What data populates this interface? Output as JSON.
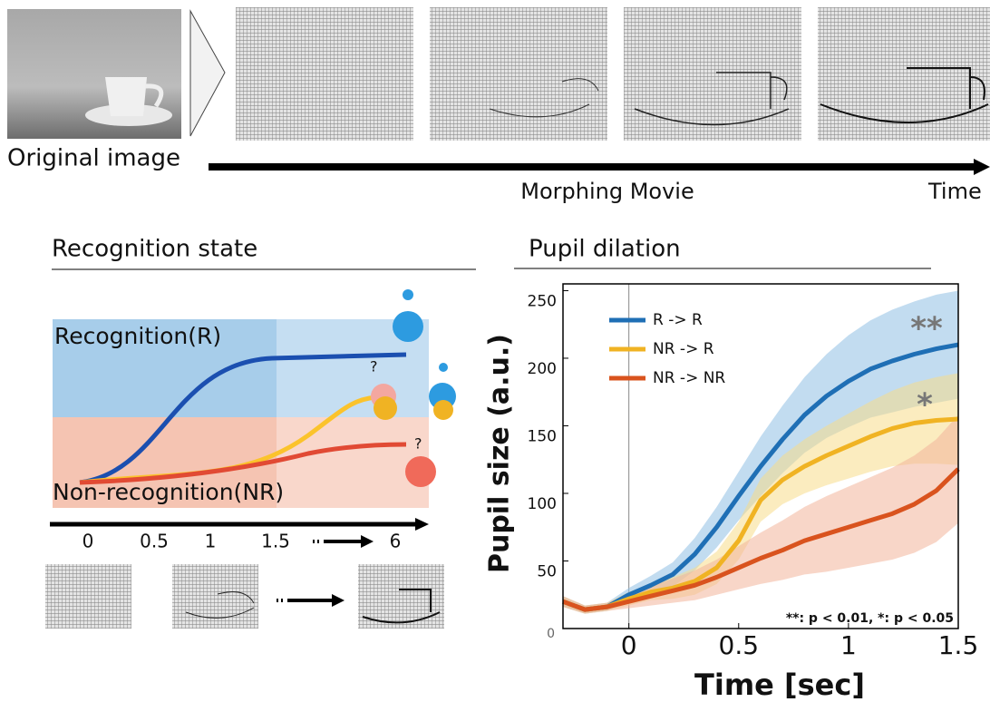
{
  "figure": {
    "original_label": "Original image",
    "movie_label": "Morphing Movie",
    "time_label": "Time"
  },
  "recognition_panel": {
    "title": "Recognition state",
    "upper_label": "Recognition(R)",
    "lower_label": "Non-recognition(NR)",
    "ticks": [
      "0",
      "0.5",
      "1",
      "1.5",
      "6"
    ]
  },
  "chart_data": {
    "type": "line",
    "title": "Pupil dilation",
    "x_label": "Time [sec]",
    "y_label": "Pupil size (a.u.)",
    "x": [
      -0.3,
      -0.2,
      -0.1,
      0,
      0.1,
      0.2,
      0.3,
      0.4,
      0.5,
      0.6,
      0.7,
      0.8,
      0.9,
      1.0,
      1.1,
      1.2,
      1.3,
      1.4,
      1.5
    ],
    "series": [
      {
        "name": "R -> R",
        "color": "#1f6fb5",
        "band_color": "#8fc0e4",
        "values": [
          20,
          14,
          16,
          25,
          32,
          40,
          55,
          75,
          98,
          120,
          140,
          158,
          172,
          183,
          192,
          198,
          203,
          207,
          210
        ],
        "error": [
          4,
          3,
          3,
          5,
          7,
          9,
          12,
          15,
          18,
          22,
          25,
          28,
          31,
          34,
          36,
          38,
          39,
          40,
          40
        ]
      },
      {
        "name": "NR -> R",
        "color": "#f0b323",
        "band_color": "#f7dc8a",
        "values": [
          20,
          14,
          16,
          22,
          27,
          30,
          35,
          45,
          65,
          95,
          110,
          120,
          128,
          135,
          142,
          148,
          152,
          154,
          155
        ],
        "error": [
          4,
          3,
          3,
          5,
          6,
          8,
          10,
          12,
          14,
          16,
          18,
          20,
          22,
          24,
          26,
          28,
          30,
          32,
          34
        ]
      },
      {
        "name": "NR -> NR",
        "color": "#d9531e",
        "band_color": "#f2b49a",
        "values": [
          20,
          14,
          16,
          20,
          24,
          28,
          32,
          38,
          45,
          52,
          58,
          65,
          70,
          75,
          80,
          85,
          92,
          102,
          118
        ],
        "error": [
          4,
          3,
          3,
          5,
          7,
          9,
          11,
          13,
          16,
          19,
          22,
          25,
          28,
          30,
          32,
          34,
          36,
          38,
          40
        ]
      }
    ],
    "xlim": [
      -0.3,
      1.5
    ],
    "xticks": [
      0,
      0.5,
      1,
      1.5
    ],
    "ylim": [
      0,
      255
    ],
    "yticks": [
      0,
      50,
      100,
      150,
      200,
      250
    ],
    "vline": 0,
    "legend": "upper left",
    "grid": false,
    "annotations": [
      "**",
      "*",
      "**: p < 0.01, *: p < 0.05"
    ]
  }
}
